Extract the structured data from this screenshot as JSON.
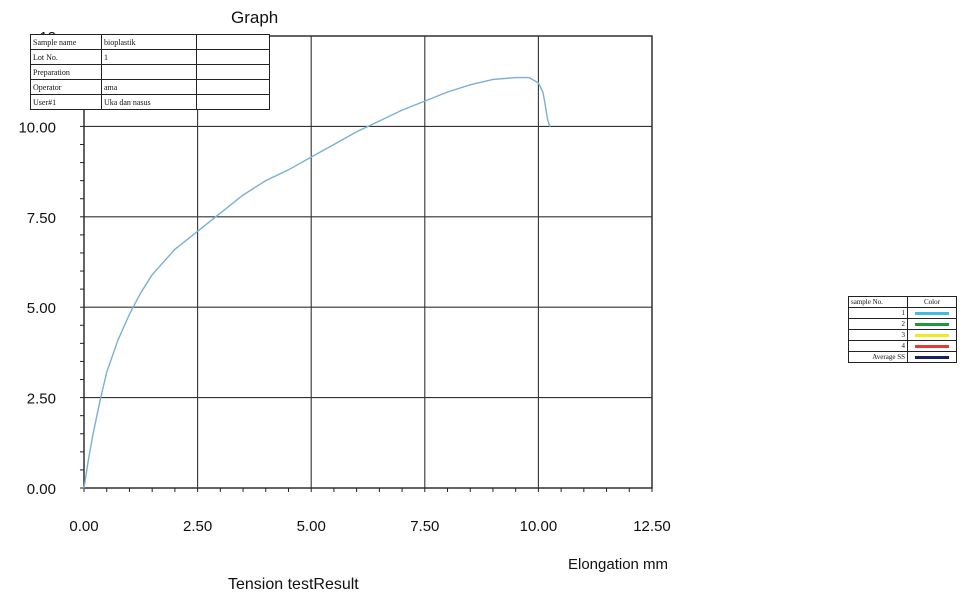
{
  "page": {
    "title": "Graph",
    "footer": "Tension testResult"
  },
  "info_table": [
    {
      "key": "Sample name",
      "value": "bioplastik"
    },
    {
      "key": "Lot No.",
      "value": "1"
    },
    {
      "key": "Preparation",
      "value": ""
    },
    {
      "key": "Operator",
      "value": "ama"
    },
    {
      "key": "User#1",
      "value": "Uka dan nasus"
    }
  ],
  "legend": {
    "header_sample": "sample No.",
    "header_color": "Color",
    "rows": [
      {
        "label": "1",
        "color": "#45b8e6"
      },
      {
        "label": "2",
        "color": "#1a9a3c"
      },
      {
        "label": "3",
        "color": "#f2ea1c"
      },
      {
        "label": "4",
        "color": "#e43a3a"
      },
      {
        "label": "Average SS",
        "color": "#1b1f5e"
      }
    ]
  },
  "chart_data": {
    "type": "line",
    "title": "Graph",
    "xlabel": "Elongation mm",
    "ylabel": "",
    "xlim": [
      0,
      12.5
    ],
    "ylim": [
      0,
      12.5
    ],
    "xticks": [
      "0.00",
      "2.50",
      "5.00",
      "7.50",
      "10.00",
      "12.50"
    ],
    "yticks": [
      "0.00",
      "2.50",
      "5.00",
      "7.50",
      "10.00",
      "12"
    ],
    "grid": true,
    "series": [
      {
        "name": "1",
        "color": "#7ab0d4",
        "x": [
          0,
          0.1,
          0.2,
          0.35,
          0.5,
          0.75,
          1.0,
          1.25,
          1.5,
          2.0,
          2.5,
          3.0,
          3.5,
          4.0,
          4.5,
          5.0,
          5.5,
          6.0,
          6.5,
          7.0,
          7.5,
          8.0,
          8.5,
          9.0,
          9.5,
          9.8,
          10.0,
          10.1,
          10.15,
          10.2,
          10.25
        ],
        "y": [
          0,
          0.8,
          1.5,
          2.4,
          3.2,
          4.1,
          4.8,
          5.4,
          5.9,
          6.6,
          7.1,
          7.6,
          8.1,
          8.5,
          8.8,
          9.15,
          9.5,
          9.85,
          10.15,
          10.45,
          10.7,
          10.95,
          11.15,
          11.3,
          11.35,
          11.35,
          11.2,
          10.95,
          10.6,
          10.2,
          10.0
        ]
      }
    ]
  }
}
